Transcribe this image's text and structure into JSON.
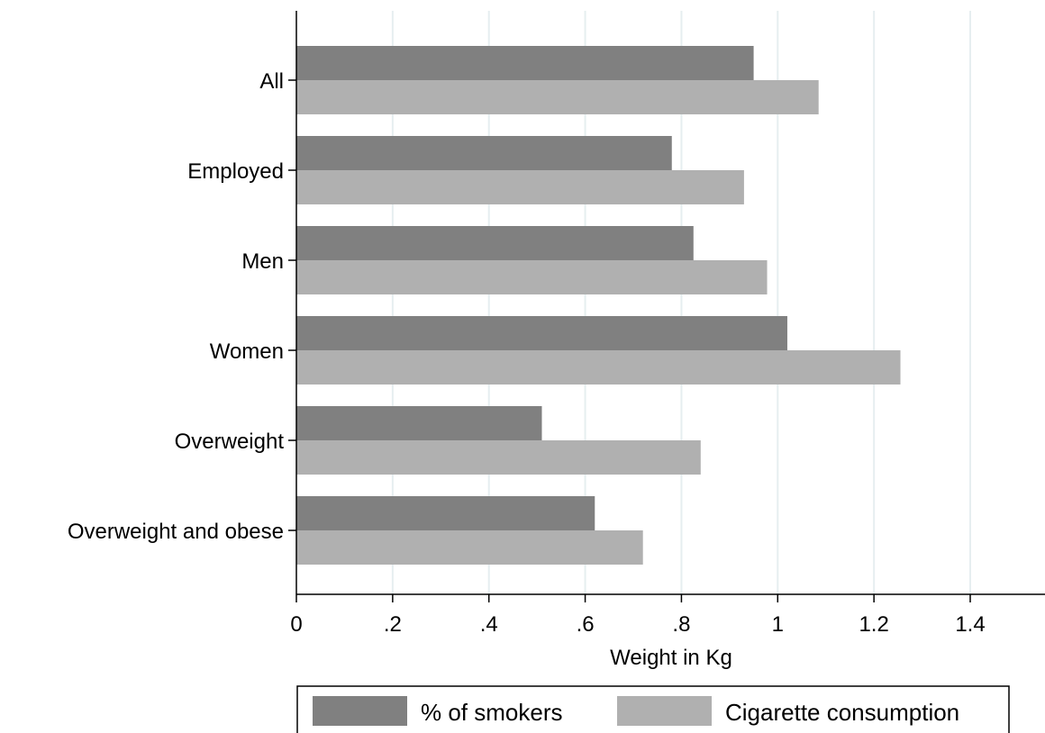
{
  "chart_data": {
    "type": "bar",
    "orientation": "horizontal",
    "categories": [
      "All",
      "Employed",
      "Men",
      "Women",
      "Overweight",
      "Overweight and obese"
    ],
    "series": [
      {
        "name": "% of smokers",
        "values": [
          0.95,
          0.78,
          0.825,
          1.02,
          0.51,
          0.62
        ],
        "color": "#808080"
      },
      {
        "name": "Cigarette consumption",
        "values": [
          1.085,
          0.93,
          0.978,
          1.255,
          0.84,
          0.72
        ],
        "color": "#b0b0b0"
      }
    ],
    "xlabel": "Weight in Kg",
    "ylabel": "",
    "xlim": [
      0,
      1.55
    ],
    "x_ticks": [
      0,
      0.2,
      0.4,
      0.6,
      0.8,
      1,
      1.2,
      1.4
    ],
    "x_tick_labels": [
      "0",
      ".2",
      ".4",
      ".6",
      ".8",
      "1",
      "1.2",
      "1.4"
    ],
    "grid": true,
    "grid_color": "#e6eef0",
    "legend_position": "bottom"
  }
}
